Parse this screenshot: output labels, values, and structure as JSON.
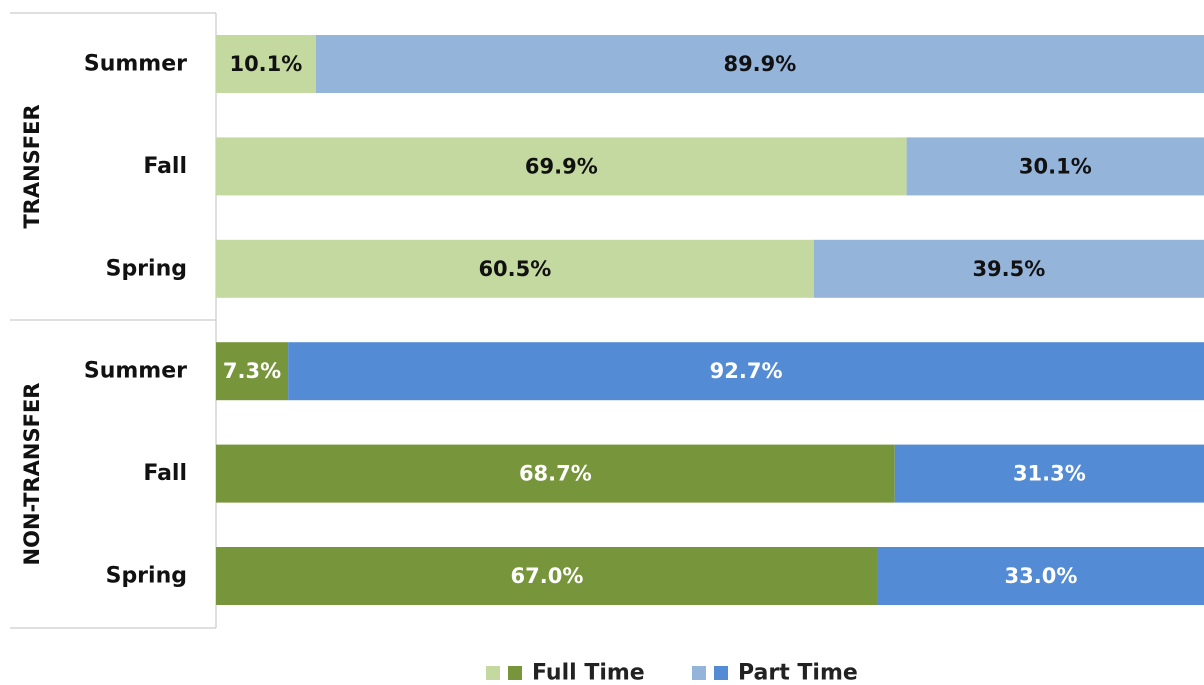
{
  "chart_data": {
    "type": "bar",
    "orientation": "horizontal",
    "stacked": true,
    "percent": true,
    "xlim": [
      0,
      100
    ],
    "grid": false,
    "legend_position": "bottom",
    "groups": [
      {
        "name": "TRANSFER",
        "categories": [
          "Summer",
          "Fall",
          "Spring"
        ],
        "series": [
          {
            "name": "Full Time",
            "values": [
              10.1,
              69.9,
              60.5
            ],
            "labels": [
              "10.1%",
              "69.9%",
              "60.5%"
            ],
            "color": "#c4d9a0",
            "label_color": "#111111"
          },
          {
            "name": "Part Time",
            "values": [
              89.9,
              30.1,
              39.5
            ],
            "labels": [
              "89.9%",
              "30.1%",
              "39.5%"
            ],
            "color": "#95b4da",
            "label_color": "#111111"
          }
        ]
      },
      {
        "name": "NON-TRANSFER",
        "categories": [
          "Summer",
          "Fall",
          "Spring"
        ],
        "series": [
          {
            "name": "Full Time",
            "values": [
              7.3,
              68.7,
              67.0
            ],
            "labels": [
              "7.3%",
              "68.7%",
              "67.0%"
            ],
            "color": "#77953b",
            "label_color": "#ffffff"
          },
          {
            "name": "Part Time",
            "values": [
              92.7,
              31.3,
              33.0
            ],
            "labels": [
              "92.7%",
              "31.3%",
              "33.0%"
            ],
            "color": "#548bd5",
            "label_color": "#ffffff"
          }
        ]
      }
    ],
    "legend": [
      {
        "name": "Full Time",
        "colors": [
          "#c4d9a0",
          "#77953b"
        ]
      },
      {
        "name": "Part Time",
        "colors": [
          "#95b4da",
          "#548bd5"
        ]
      }
    ]
  }
}
